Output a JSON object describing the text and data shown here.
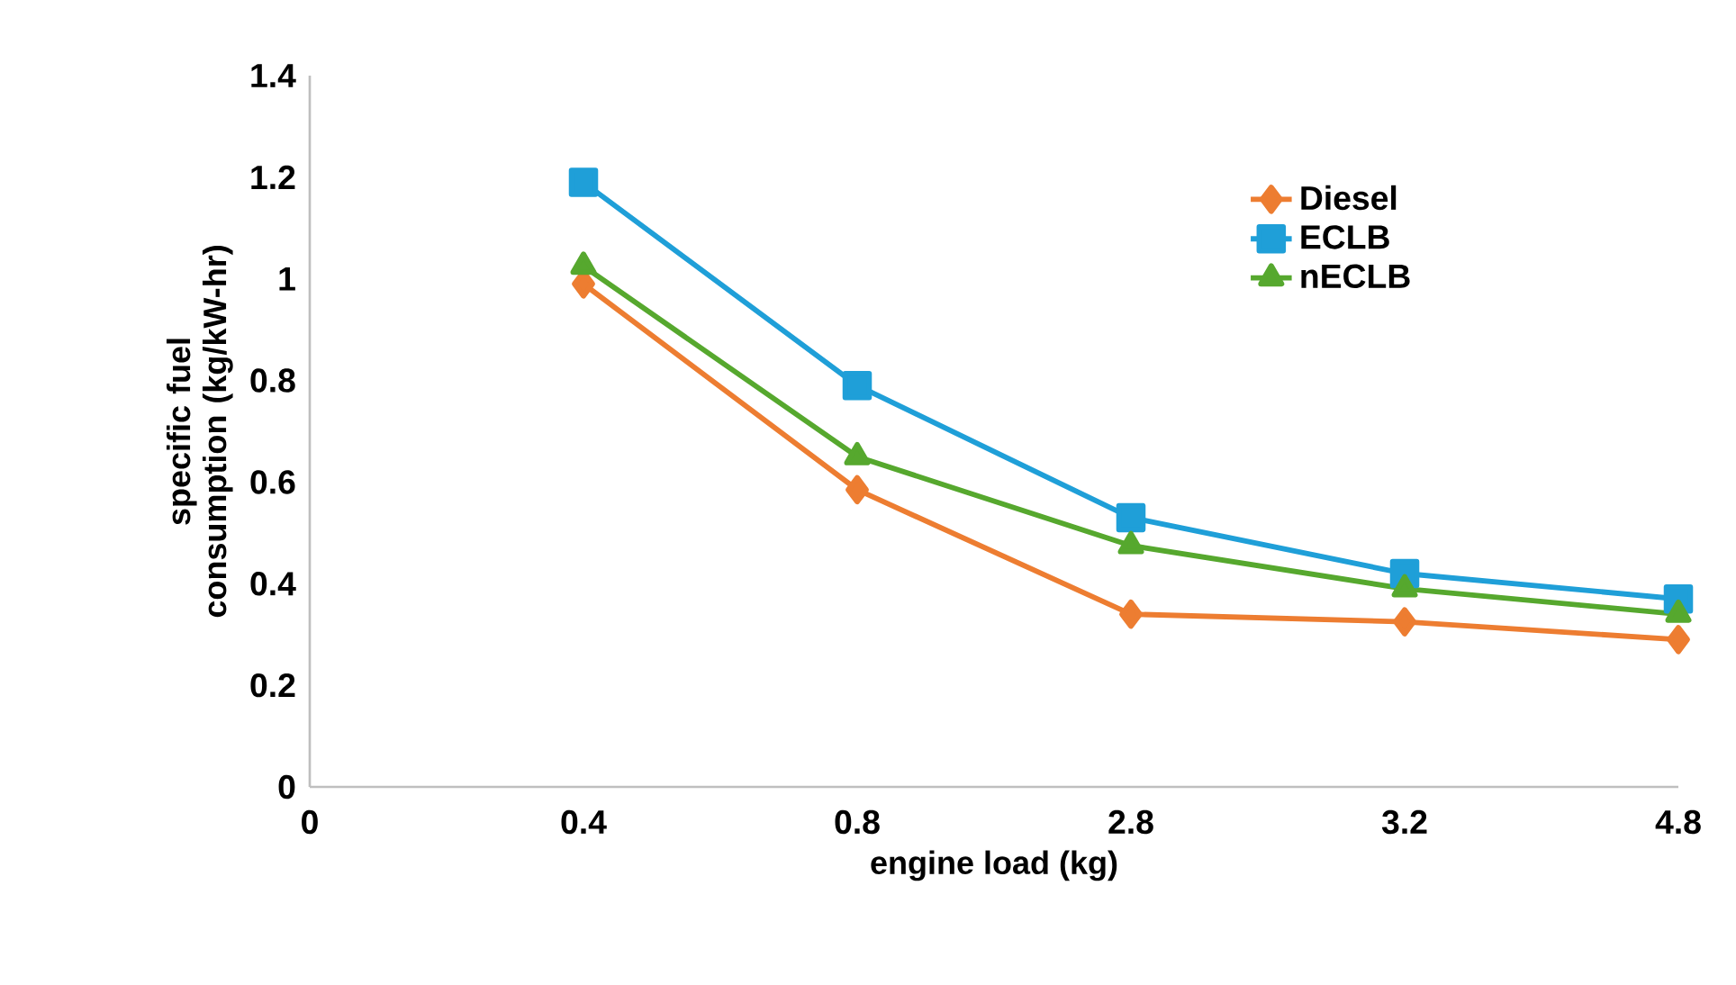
{
  "chart_data": {
    "type": "line",
    "xlabel": "engine load (kg)",
    "ylabel": "specific fuel consumption (kg/kW-hr)",
    "categories": [
      "0",
      "0.4",
      "0.8",
      "2.8",
      "3.2",
      "4.8"
    ],
    "series": [
      {
        "name": "Diesel",
        "color": "#ed7d31",
        "marker": "diamond",
        "values": [
          null,
          0.99,
          0.585,
          0.34,
          0.325,
          0.29
        ]
      },
      {
        "name": "ECLB",
        "color": "#1f9fd8",
        "marker": "square",
        "values": [
          null,
          1.19,
          0.79,
          0.53,
          0.42,
          0.37
        ]
      },
      {
        "name": "nECLB",
        "color": "#56a82e",
        "marker": "triangle",
        "values": [
          null,
          1.025,
          0.65,
          0.475,
          0.39,
          0.34
        ]
      }
    ],
    "ylim": [
      0,
      1.4
    ],
    "yticks": [
      0,
      0.2,
      0.4,
      0.6,
      0.8,
      1,
      1.2,
      1.4
    ],
    "grid": false,
    "legend": "top right",
    "line_style": "solid"
  }
}
